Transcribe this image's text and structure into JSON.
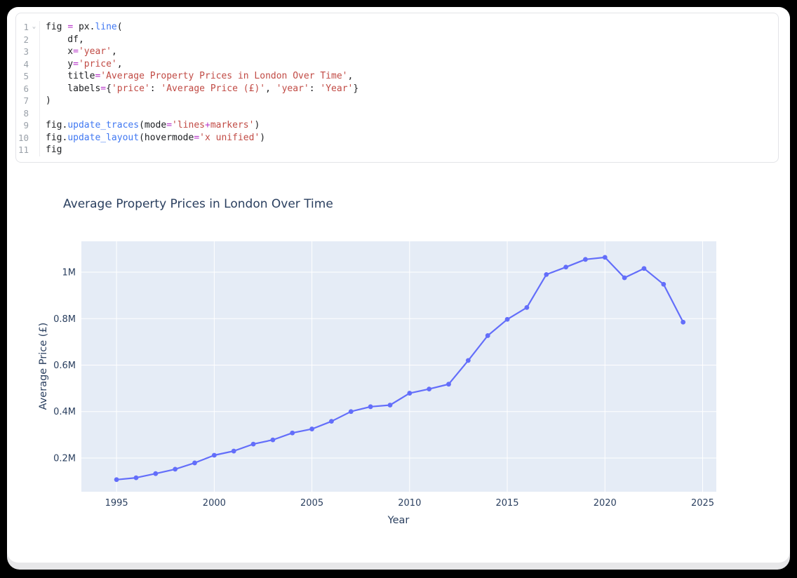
{
  "editor": {
    "lines": [
      {
        "n": "1",
        "fold": "⌄",
        "tokens": [
          [
            "p",
            "fig "
          ],
          [
            "eq",
            "="
          ],
          [
            "p",
            " px."
          ],
          [
            "fn",
            "line"
          ],
          [
            "p",
            "("
          ]
        ]
      },
      {
        "n": "2",
        "tokens": [
          [
            "p",
            "    df,"
          ]
        ]
      },
      {
        "n": "3",
        "tokens": [
          [
            "p",
            "    x"
          ],
          [
            "eq",
            "="
          ],
          [
            "str",
            "'year'"
          ],
          [
            "p",
            ","
          ]
        ]
      },
      {
        "n": "4",
        "tokens": [
          [
            "p",
            "    y"
          ],
          [
            "eq",
            "="
          ],
          [
            "str",
            "'price'"
          ],
          [
            "p",
            ","
          ]
        ]
      },
      {
        "n": "5",
        "tokens": [
          [
            "p",
            "    title"
          ],
          [
            "eq",
            "="
          ],
          [
            "str",
            "'Average Property Prices in London Over Time'"
          ],
          [
            "p",
            ","
          ]
        ]
      },
      {
        "n": "6",
        "tokens": [
          [
            "p",
            "    labels"
          ],
          [
            "eq",
            "="
          ],
          [
            "p",
            "{"
          ],
          [
            "str",
            "'price'"
          ],
          [
            "p",
            ": "
          ],
          [
            "str",
            "'Average Price (£)'"
          ],
          [
            "p",
            ", "
          ],
          [
            "str",
            "'year'"
          ],
          [
            "p",
            ": "
          ],
          [
            "str",
            "'Year'"
          ],
          [
            "p",
            "}"
          ]
        ]
      },
      {
        "n": "7",
        "tokens": [
          [
            "p",
            ")"
          ]
        ]
      },
      {
        "n": "8",
        "tokens": []
      },
      {
        "n": "9",
        "tokens": [
          [
            "p",
            "fig."
          ],
          [
            "fn",
            "update_traces"
          ],
          [
            "p",
            "(mode"
          ],
          [
            "eq",
            "="
          ],
          [
            "str",
            "'lines"
          ],
          [
            "eq",
            "+"
          ],
          [
            "str",
            "markers'"
          ],
          [
            "p",
            ")"
          ]
        ]
      },
      {
        "n": "10",
        "tokens": [
          [
            "p",
            "fig."
          ],
          [
            "fn",
            "update_layout"
          ],
          [
            "p",
            "(hovermode"
          ],
          [
            "eq",
            "="
          ],
          [
            "str",
            "'x unified'"
          ],
          [
            "p",
            ")"
          ]
        ]
      },
      {
        "n": "11",
        "tokens": [
          [
            "p",
            "fig"
          ]
        ]
      }
    ]
  },
  "chart_data": {
    "type": "line",
    "title": "Average Property Prices in London Over Time",
    "xlabel": "Year",
    "ylabel": "Average Price (£)",
    "x": [
      1995,
      1996,
      1997,
      1998,
      1999,
      2000,
      2001,
      2002,
      2003,
      2004,
      2005,
      2006,
      2007,
      2008,
      2009,
      2010,
      2011,
      2012,
      2013,
      2014,
      2015,
      2016,
      2017,
      2018,
      2019,
      2020,
      2021,
      2022,
      2023,
      2024
    ],
    "series": [
      {
        "name": "price",
        "values": [
          107000,
          115000,
          133000,
          152000,
          179000,
          212000,
          230000,
          260000,
          278000,
          308000,
          325000,
          358000,
          400000,
          421000,
          428000,
          479000,
          497000,
          518000,
          620000,
          727000,
          797000,
          848000,
          990000,
          1022000,
          1055000,
          1064000,
          976000,
          1016000,
          948000,
          785000
        ]
      }
    ],
    "x_ticks": [
      1995,
      2000,
      2005,
      2010,
      2015,
      2020,
      2025
    ],
    "x_tick_labels": [
      "1995",
      "2000",
      "2005",
      "2010",
      "2015",
      "2020",
      "2025"
    ],
    "y_ticks": [
      200000,
      400000,
      600000,
      800000,
      1000000
    ],
    "y_tick_labels": [
      "0.2M",
      "0.4M",
      "0.6M",
      "0.8M",
      "1M"
    ],
    "xlim": [
      1993.2,
      2025.7
    ],
    "ylim": [
      55000,
      1133000
    ],
    "grid": true,
    "markers": true,
    "legend": "none",
    "colors": {
      "line": "#636efa",
      "plot_bg": "#e5ecf6",
      "grid": "#ffffff",
      "text": "#2a3f5f"
    }
  }
}
